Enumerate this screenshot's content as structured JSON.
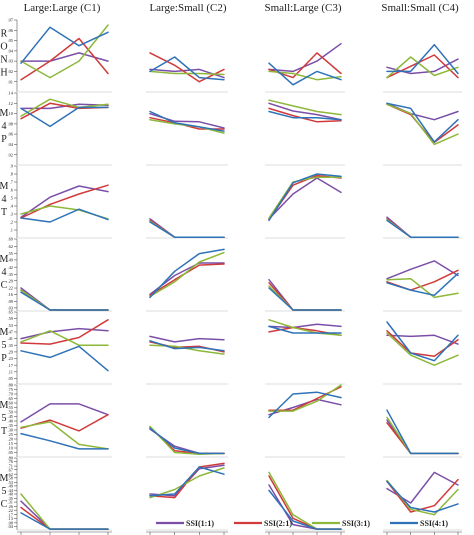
{
  "chart_data": {
    "type": "line",
    "title": "",
    "columns": [
      {
        "key": "C1",
        "label": "Large:Large (C1)"
      },
      {
        "key": "C2",
        "label": "Large:Small (C2)"
      },
      {
        "key": "C3",
        "label": "Small:Large (C3)"
      },
      {
        "key": "C4",
        "label": "Small:Small (C4)"
      }
    ],
    "x_categories": [
      "VI(1:1)",
      "VI(2:1)",
      "VI(3:1)",
      "VI(4:1)"
    ],
    "legend": {
      "placement": "bottom",
      "entries": [
        {
          "name": "SSI(1:1)",
          "color": "#7b4fa8"
        },
        {
          "name": "SSI(2:1)",
          "color": "#d13a3a"
        },
        {
          "name": "SSI(3:1)",
          "color": "#8db83a"
        },
        {
          "name": "SSI(4:1)",
          "color": "#2e72b8"
        }
      ]
    },
    "rows": [
      {
        "label": "RONH",
        "ylim": [
          0,
          0.07
        ],
        "yticks": [
          0.01,
          0.02,
          0.03,
          0.04,
          0.05,
          0.06,
          0.07
        ],
        "ytick_labels": [
          ".01",
          ".02",
          ".03",
          ".04",
          ".05",
          ".06",
          ".07"
        ],
        "panels": {
          "C1": [
            [
              0.03,
              0.03,
              0.038,
              0.03
            ],
            [
              0.012,
              0.03,
              0.052,
              0.018
            ],
            [
              0.03,
              0.014,
              0.03,
              0.065
            ],
            [
              0.028,
              0.063,
              0.045,
              0.058
            ]
          ],
          "C2": [
            [
              0.022,
              0.02,
              0.022,
              0.014
            ],
            [
              0.038,
              0.026,
              0.01,
              0.022
            ],
            [
              0.02,
              0.018,
              0.018,
              0.017
            ],
            [
              0.02,
              0.034,
              0.014,
              0.012
            ]
          ],
          "C3": [
            [
              0.022,
              0.02,
              0.03,
              0.047
            ],
            [
              0.022,
              0.014,
              0.038,
              0.018
            ],
            [
              0.02,
              0.018,
              0.012,
              0.015
            ],
            [
              0.028,
              0.007,
              0.02,
              0.012
            ]
          ],
          "C4": [
            [
              0.024,
              0.018,
              0.02,
              0.032
            ],
            [
              0.014,
              0.025,
              0.036,
              0.014
            ],
            [
              0.014,
              0.034,
              0.016,
              0.024
            ],
            [
              0.02,
              0.02,
              0.046,
              0.018
            ]
          ]
        }
      },
      {
        "label": "M4P",
        "ylim": [
          0,
          0.14
        ],
        "yticks": [
          0.02,
          0.04,
          0.06,
          0.08,
          0.1,
          0.12,
          0.14
        ],
        "ytick_labels": [
          ".02",
          ".04",
          ".06",
          ".08",
          ".10",
          ".12",
          ".14"
        ],
        "panels": {
          "C1": [
            [
              0.11,
              0.11,
              0.118,
              0.116
            ],
            [
              0.09,
              0.12,
              0.11,
              0.112
            ],
            [
              0.095,
              0.128,
              0.112,
              0.118
            ],
            [
              0.11,
              0.075,
              0.112,
              0.112
            ]
          ],
          "C2": [
            [
              0.1,
              0.085,
              0.084,
              0.072
            ],
            [
              0.092,
              0.082,
              0.07,
              0.07
            ],
            [
              0.088,
              0.08,
              0.074,
              0.062
            ],
            [
              0.104,
              0.082,
              0.074,
              0.066
            ]
          ],
          "C3": [
            [
              0.12,
              0.105,
              0.098,
              0.088
            ],
            [
              0.11,
              0.096,
              0.084,
              0.086
            ],
            [
              0.126,
              0.115,
              0.104,
              0.098
            ],
            [
              0.104,
              0.092,
              0.092,
              0.088
            ]
          ],
          "C4": [
            [
              0.12,
              0.1,
              0.088,
              0.104
            ],
            [
              0.118,
              0.098,
              0.044,
              0.078
            ],
            [
              0.118,
              0.1,
              0.04,
              0.06
            ],
            [
              0.12,
              0.11,
              0.045,
              0.088
            ]
          ]
        }
      },
      {
        "label": "M4T",
        "ylim": [
          0,
          0.9
        ],
        "yticks": [
          0.1,
          0.2,
          0.3,
          0.4,
          0.5,
          0.6,
          0.7,
          0.8,
          0.9
        ],
        "ytick_labels": [
          ".1",
          ".2",
          ".3",
          ".4",
          ".5",
          ".6",
          ".7",
          ".8",
          ".9"
        ],
        "panels": {
          "C1": [
            [
              0.26,
              0.51,
              0.65,
              0.58
            ],
            [
              0.25,
              0.42,
              0.55,
              0.66
            ],
            [
              0.3,
              0.4,
              0.35,
              0.24
            ],
            [
              0.25,
              0.2,
              0.36,
              0.23
            ]
          ],
          "C2": [
            [
              0.24,
              0.01,
              0.01,
              0.01
            ],
            [
              0.22,
              0.01,
              0.01,
              0.01
            ],
            [
              0.21,
              0.01,
              0.01,
              0.01
            ],
            [
              0.2,
              0.01,
              0.01,
              0.01
            ]
          ],
          "C3": [
            [
              0.24,
              0.55,
              0.75,
              0.57
            ],
            [
              0.23,
              0.66,
              0.78,
              0.75
            ],
            [
              0.25,
              0.7,
              0.76,
              0.76
            ],
            [
              0.22,
              0.69,
              0.8,
              0.77
            ]
          ],
          "C4": [
            [
              0.26,
              0.01,
              0.01,
              0.01
            ],
            [
              0.24,
              0.01,
              0.01,
              0.01
            ],
            [
              0.23,
              0.01,
              0.01,
              0.01
            ],
            [
              0.22,
              0.01,
              0.01,
              0.01
            ]
          ]
        }
      },
      {
        "label": "M4C",
        "ylim": [
          0,
          0.69
        ],
        "yticks": [
          0.03,
          0.09,
          0.16,
          0.22,
          0.29,
          0.35,
          0.42,
          0.49,
          0.55,
          0.62,
          0.69
        ],
        "ytick_labels": [
          ".03",
          ".09",
          ".16",
          ".22",
          ".29",
          ".35",
          ".42",
          ".49",
          ".55",
          ".62",
          ".69"
        ],
        "panels": {
          "C1": [
            [
              0.22,
              0.01,
              0.01,
              0.01
            ],
            [
              0.2,
              0.01,
              0.01,
              0.01
            ],
            [
              0.2,
              0.01,
              0.01,
              0.01
            ],
            [
              0.18,
              0.01,
              0.01,
              0.01
            ]
          ],
          "C2": [
            [
              0.16,
              0.34,
              0.46,
              0.46
            ],
            [
              0.15,
              0.3,
              0.44,
              0.45
            ],
            [
              0.14,
              0.28,
              0.47,
              0.56
            ],
            [
              0.13,
              0.38,
              0.55,
              0.59
            ]
          ],
          "C3": [
            [
              0.3,
              0.01,
              0.01,
              0.01
            ],
            [
              0.27,
              0.01,
              0.01,
              0.01
            ],
            [
              0.24,
              0.01,
              0.01,
              0.01
            ],
            [
              0.22,
              0.01,
              0.01,
              0.01
            ]
          ],
          "C4": [
            [
              0.31,
              0.4,
              0.48,
              0.34
            ],
            [
              0.28,
              0.2,
              0.28,
              0.39
            ],
            [
              0.3,
              0.31,
              0.13,
              0.17
            ],
            [
              0.27,
              0.2,
              0.15,
              0.36
            ]
          ]
        }
      },
      {
        "label": "M5P",
        "ylim": [
          0,
          0.65
        ],
        "yticks": [
          0.05,
          0.11,
          0.17,
          0.23,
          0.29,
          0.35,
          0.41,
          0.47,
          0.53,
          0.59,
          0.65
        ],
        "ytick_labels": [
          ".05",
          ".11",
          ".17",
          ".23",
          ".29",
          ".35",
          ".41",
          ".47",
          ".53",
          ".59",
          ".65"
        ],
        "panels": {
          "C1": [
            [
              0.41,
              0.47,
              0.5,
              0.48
            ],
            [
              0.37,
              0.36,
              0.42,
              0.58
            ],
            [
              0.38,
              0.48,
              0.35,
              0.35
            ],
            [
              0.3,
              0.24,
              0.34,
              0.12
            ]
          ],
          "C2": [
            [
              0.43,
              0.38,
              0.41,
              0.4
            ],
            [
              0.38,
              0.33,
              0.34,
              0.29
            ],
            [
              0.35,
              0.34,
              0.3,
              0.27
            ],
            [
              0.39,
              0.32,
              0.33,
              0.3
            ]
          ],
          "C3": [
            [
              0.52,
              0.51,
              0.54,
              0.52
            ],
            [
              0.47,
              0.51,
              0.48,
              0.44
            ],
            [
              0.58,
              0.51,
              0.46,
              0.44
            ],
            [
              0.52,
              0.46,
              0.46,
              0.46
            ]
          ],
          "C4": [
            [
              0.44,
              0.43,
              0.44,
              0.36
            ],
            [
              0.48,
              0.28,
              0.25,
              0.4
            ],
            [
              0.46,
              0.26,
              0.17,
              0.26
            ],
            [
              0.56,
              0.28,
              0.21,
              0.44
            ]
          ]
        }
      },
      {
        "label": "M5T",
        "ylim": [
          0,
          0.8
        ],
        "yticks": [
          0.05,
          0.1,
          0.15,
          0.2,
          0.25,
          0.3,
          0.35,
          0.4,
          0.45,
          0.5,
          0.55,
          0.6,
          0.65,
          0.7,
          0.75,
          0.8
        ],
        "ytick_labels": [
          ".05",
          ".10",
          ".15",
          ".20",
          ".25",
          ".30",
          ".35",
          ".40",
          ".45",
          ".50",
          ".55",
          ".60",
          ".65",
          ".70",
          ".75",
          ".80"
        ],
        "panels": {
          "C1": [
            [
              0.39,
              0.59,
              0.59,
              0.47
            ],
            [
              0.32,
              0.41,
              0.29,
              0.47
            ],
            [
              0.33,
              0.39,
              0.14,
              0.09
            ],
            [
              0.26,
              0.18,
              0.09,
              0.09
            ]
          ],
          "C2": [
            [
              0.31,
              0.12,
              0.04,
              0.04
            ],
            [
              0.33,
              0.07,
              0.04,
              0.04
            ],
            [
              0.34,
              0.05,
              0.03,
              0.04
            ],
            [
              0.32,
              0.1,
              0.04,
              0.04
            ]
          ],
          "C3": [
            [
              0.47,
              0.55,
              0.64,
              0.58
            ],
            [
              0.52,
              0.52,
              0.65,
              0.78
            ],
            [
              0.51,
              0.51,
              0.62,
              0.8
            ],
            [
              0.44,
              0.7,
              0.72,
              0.66
            ]
          ],
          "C4": [
            [
              0.41,
              0.04,
              0.04,
              0.04
            ],
            [
              0.38,
              0.04,
              0.04,
              0.04
            ],
            [
              0.44,
              0.04,
              0.04,
              0.04
            ],
            [
              0.52,
              0.04,
              0.04,
              0.04
            ]
          ]
        }
      },
      {
        "label": "M5C",
        "ylim": [
          0,
          0.8
        ],
        "yticks": [
          0.04,
          0.08,
          0.13,
          0.17,
          0.22,
          0.26,
          0.31,
          0.35,
          0.4,
          0.44,
          0.49,
          0.53,
          0.58,
          0.62,
          0.67,
          0.71,
          0.76,
          0.8
        ],
        "ytick_labels": [
          ".04",
          ".08",
          ".13",
          ".17",
          ".22",
          ".26",
          ".31",
          ".35",
          ".40",
          ".44",
          ".49",
          ".53",
          ".58",
          ".62",
          ".67",
          ".71",
          ".76",
          ".80"
        ],
        "panels": {
          "C1": [
            [
              0.32,
              0.01,
              0.01,
              0.01
            ],
            [
              0.25,
              0.01,
              0.01,
              0.01
            ],
            [
              0.4,
              0.01,
              0.01,
              0.01
            ],
            [
              0.19,
              0.01,
              0.01,
              0.01
            ]
          ],
          "C2": [
            [
              0.4,
              0.38,
              0.68,
              0.72
            ],
            [
              0.38,
              0.36,
              0.7,
              0.74
            ],
            [
              0.36,
              0.45,
              0.6,
              0.69
            ],
            [
              0.38,
              0.4,
              0.7,
              0.62
            ]
          ],
          "C3": [
            [
              0.5,
              0.06,
              0.01,
              0.01
            ],
            [
              0.6,
              0.13,
              0.01,
              0.01
            ],
            [
              0.64,
              0.17,
              0.01,
              0.01
            ],
            [
              0.44,
              0.1,
              0.01,
              0.01
            ]
          ],
          "C4": [
            [
              0.46,
              0.3,
              0.64,
              0.5
            ],
            [
              0.54,
              0.2,
              0.27,
              0.56
            ],
            [
              0.55,
              0.23,
              0.17,
              0.45
            ],
            [
              0.54,
              0.25,
              0.2,
              0.29
            ]
          ]
        }
      }
    ]
  }
}
